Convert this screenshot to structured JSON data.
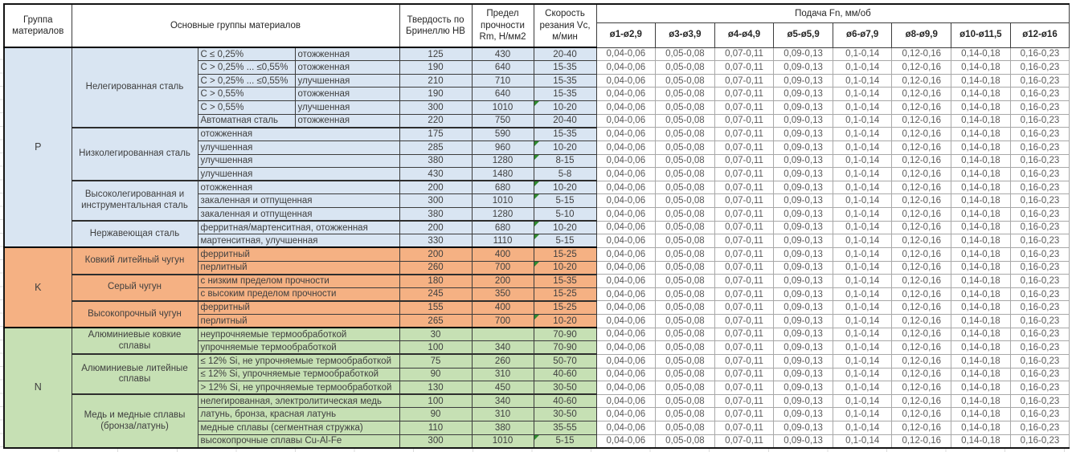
{
  "colors": {
    "group_p_bg": "#D9E5F2",
    "group_k_bg": "#F5B183",
    "group_n_bg": "#C6E0B4",
    "flag": "#2E8B2E"
  },
  "table": {
    "header": {
      "group": "Группа материалов",
      "materials": "Основные группы материалов",
      "hardness": "Твердость по Бринеллю HB",
      "strength": "Предел прочности Rm, Н/мм2",
      "speed": "Скорость резания Vc, м/мин",
      "feed": "Подача Fn, мм/об",
      "feed_columns": [
        "ø1-ø2,9",
        "ø3-ø3,9",
        "ø4-ø4,9",
        "ø5-ø5,9",
        "ø6-ø7,9",
        "ø8-ø9,9",
        "ø10-ø11,5",
        "ø12-ø16"
      ]
    },
    "feed_values": [
      "0,04-0,06",
      "0,05-0,08",
      "0,07-0,11",
      "0,09-0,13",
      "0,1-0,14",
      "0,12-0,16",
      "0,14-0,18",
      "0,16-0,23"
    ],
    "groups": [
      {
        "code": "P",
        "bg": "#D9E5F2",
        "categories": [
          {
            "name": "Нелегированная сталь",
            "rows": [
              {
                "detail": [
                  "C ≤ 0,25%",
                  "отожженная"
                ],
                "hb": "125",
                "rm": "430",
                "vc": "20-40",
                "flag": false
              },
              {
                "detail": [
                  "C > 0,25% ... ≤0,55%",
                  "отожженная"
                ],
                "hb": "190",
                "rm": "640",
                "vc": "15-35",
                "flag": false
              },
              {
                "detail": [
                  "C > 0,25% ... ≤0,55%",
                  "улучшенная"
                ],
                "hb": "210",
                "rm": "710",
                "vc": "15-35",
                "flag": false
              },
              {
                "detail": [
                  "C > 0,55%",
                  "отожженная"
                ],
                "hb": "190",
                "rm": "640",
                "vc": "15-35",
                "flag": false
              },
              {
                "detail": [
                  "C > 0,55%",
                  "улучшенная"
                ],
                "hb": "300",
                "rm": "1010",
                "vc": "10-20",
                "flag": true
              },
              {
                "detail": [
                  "Автоматная сталь",
                  "отожженная"
                ],
                "hb": "220",
                "rm": "750",
                "vc": "20-40",
                "flag": false
              }
            ]
          },
          {
            "name": "Низколегированная сталь",
            "rows": [
              {
                "detail": [
                  "отожженная"
                ],
                "hb": "175",
                "rm": "590",
                "vc": "15-35",
                "flag": false
              },
              {
                "detail": [
                  "улучшенная"
                ],
                "hb": "285",
                "rm": "960",
                "vc": "10-20",
                "flag": true
              },
              {
                "detail": [
                  "улучшенная"
                ],
                "hb": "380",
                "rm": "1280",
                "vc": "8-15",
                "flag": true
              },
              {
                "detail": [
                  "улучшенная"
                ],
                "hb": "430",
                "rm": "1480",
                "vc": "5-8",
                "flag": false
              }
            ]
          },
          {
            "name": "Высоколегированная и инструментальная сталь",
            "rows": [
              {
                "detail": [
                  "отожженная"
                ],
                "hb": "200",
                "rm": "680",
                "vc": "10-20",
                "flag": true
              },
              {
                "detail": [
                  "закаленная и отпущенная"
                ],
                "hb": "300",
                "rm": "1010",
                "vc": "5-15",
                "flag": true
              },
              {
                "detail": [
                  "закаленная и отпущенная"
                ],
                "hb": "380",
                "rm": "1280",
                "vc": "5-10",
                "flag": false
              }
            ]
          },
          {
            "name": "Нержавеющая сталь",
            "rows": [
              {
                "detail": [
                  "ферритная/мартенситная, отожженная"
                ],
                "hb": "200",
                "rm": "680",
                "vc": "10-20",
                "flag": true
              },
              {
                "detail": [
                  "мартенситная, улучшенная"
                ],
                "hb": "330",
                "rm": "1110",
                "vc": "5-15",
                "flag": true
              }
            ]
          }
        ]
      },
      {
        "code": "K",
        "bg": "#F5B183",
        "categories": [
          {
            "name": "Ковкий литейный чугун",
            "rows": [
              {
                "detail": [
                  "ферритный"
                ],
                "hb": "200",
                "rm": "400",
                "vc": "15-25",
                "flag": false
              },
              {
                "detail": [
                  "перлитный"
                ],
                "hb": "260",
                "rm": "700",
                "vc": "10-20",
                "flag": true
              }
            ]
          },
          {
            "name": "Серый чугун",
            "rows": [
              {
                "detail": [
                  "с низким пределом прочности"
                ],
                "hb": "180",
                "rm": "200",
                "vc": "15-35",
                "flag": false
              },
              {
                "detail": [
                  "с высоким пределом прочности"
                ],
                "hb": "245",
                "rm": "350",
                "vc": "15-25",
                "flag": false
              }
            ]
          },
          {
            "name": "Высокопрочный чугун",
            "rows": [
              {
                "detail": [
                  "ферритный"
                ],
                "hb": "155",
                "rm": "400",
                "vc": "15-25",
                "flag": false
              },
              {
                "detail": [
                  "перлитный"
                ],
                "hb": "265",
                "rm": "700",
                "vc": "10-20",
                "flag": true
              }
            ]
          }
        ]
      },
      {
        "code": "N",
        "bg": "#C6E0B4",
        "categories": [
          {
            "name": "Алюминиевые ковкие сплавы",
            "rows": [
              {
                "detail": [
                  "неупрочняемые термообработкой"
                ],
                "hb": "30",
                "rm": "",
                "vc": "70-90",
                "flag": false
              },
              {
                "detail": [
                  "упрочняемые термообработкой"
                ],
                "hb": "100",
                "rm": "340",
                "vc": "70-90",
                "flag": false
              }
            ]
          },
          {
            "name": "Алюминиевые литейные сплавы",
            "rows": [
              {
                "detail": [
                  "≤ 12% Si, не упрочняемые термообработкой"
                ],
                "hb": "75",
                "rm": "260",
                "vc": "50-70",
                "flag": false
              },
              {
                "detail": [
                  "≤ 12% Si, упрочняемые термообработкой"
                ],
                "hb": "90",
                "rm": "310",
                "vc": "40-60",
                "flag": false
              },
              {
                "detail": [
                  "> 12% Si, не упрочняемые термообработкой"
                ],
                "hb": "130",
                "rm": "450",
                "vc": "30-50",
                "flag": false
              }
            ]
          },
          {
            "name": "Медь и медные сплавы (бронза/латунь)",
            "rows": [
              {
                "detail": [
                  "нелегированная, электролитическая медь"
                ],
                "hb": "100",
                "rm": "340",
                "vc": "40-60",
                "flag": false
              },
              {
                "detail": [
                  "латунь, бронза, красная латунь"
                ],
                "hb": "90",
                "rm": "310",
                "vc": "30-50",
                "flag": false
              },
              {
                "detail": [
                  "медные сплавы (сегментная стружка)"
                ],
                "hb": "110",
                "rm": "380",
                "vc": "35-55",
                "flag": false
              },
              {
                "detail": [
                  "высокопрочные сплавы Cu-Al-Fe"
                ],
                "hb": "300",
                "rm": "1010",
                "vc": "5-15",
                "flag": true
              }
            ]
          }
        ]
      }
    ]
  }
}
